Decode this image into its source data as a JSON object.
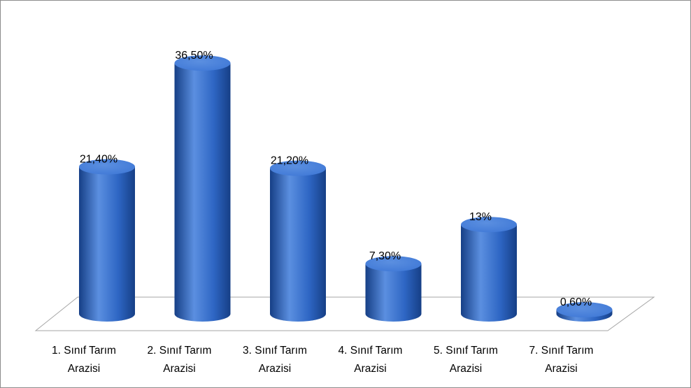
{
  "chart_data": {
    "type": "bar",
    "style": "3d-cylinder",
    "categories": [
      {
        "line1": "1. Sınıf Tarım",
        "line2": "Arazisi"
      },
      {
        "line1": "2. Sınıf Tarım",
        "line2": "Arazisi"
      },
      {
        "line1": "3. Sınıf Tarım",
        "line2": "Arazisi"
      },
      {
        "line1": "4. Sınıf Tarım",
        "line2": "Arazisi"
      },
      {
        "line1": "5. Sınıf Tarım",
        "line2": "Arazisi"
      },
      {
        "line1": "7. Sınıf Tarım",
        "line2": "Arazisi"
      }
    ],
    "values": [
      21.4,
      36.5,
      21.2,
      7.3,
      13,
      0.6
    ],
    "data_labels": [
      "21,40%",
      "36,50%",
      "21,20%",
      "7,30%",
      "13%",
      "0,60%"
    ],
    "ylim": [
      0,
      40
    ],
    "grid": false,
    "legend": "none",
    "title": "",
    "xlabel": "",
    "ylabel": "",
    "colors": {
      "bar_light": "#5b8fe0",
      "bar_mid": "#2e66c4",
      "bar_dark": "#163f86",
      "bar_top": "#3f78d6",
      "floor_stroke": "#a6a6a6"
    }
  }
}
